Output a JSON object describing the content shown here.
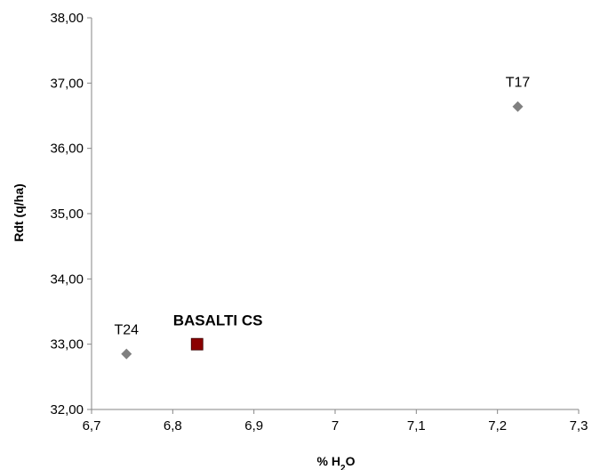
{
  "chart_data": {
    "type": "scatter",
    "title": "",
    "ylabel": "Rdt (q/ha)",
    "xlabel_parts": [
      "% H",
      "2",
      "O"
    ],
    "xlim": [
      6.7,
      7.3
    ],
    "ylim": [
      32,
      38
    ],
    "x_ticks": [
      6.7,
      6.8,
      6.9,
      7.0,
      7.1,
      7.2,
      7.3
    ],
    "x_tick_labels": [
      "6,7",
      "6,8",
      "6,9",
      "7",
      "7,1",
      "7,2",
      "7,3"
    ],
    "y_ticks": [
      32,
      33,
      34,
      35,
      36,
      37,
      38
    ],
    "y_tick_labels": [
      "32,00",
      "33,00",
      "34,00",
      "35,00",
      "36,00",
      "37,00",
      "38,00"
    ],
    "grid": false,
    "legend": "none",
    "points": [
      {
        "label": "T24",
        "x": 6.743,
        "y": 32.85,
        "marker": "diamond",
        "color": "#808080",
        "bold": false
      },
      {
        "label": "BASALTI CS",
        "x": 6.83,
        "y": 33.0,
        "marker": "square",
        "color": "#8b0000",
        "bold": true
      },
      {
        "label": "T17",
        "x": 7.225,
        "y": 36.64,
        "marker": "diamond",
        "color": "#808080",
        "bold": false
      }
    ]
  }
}
